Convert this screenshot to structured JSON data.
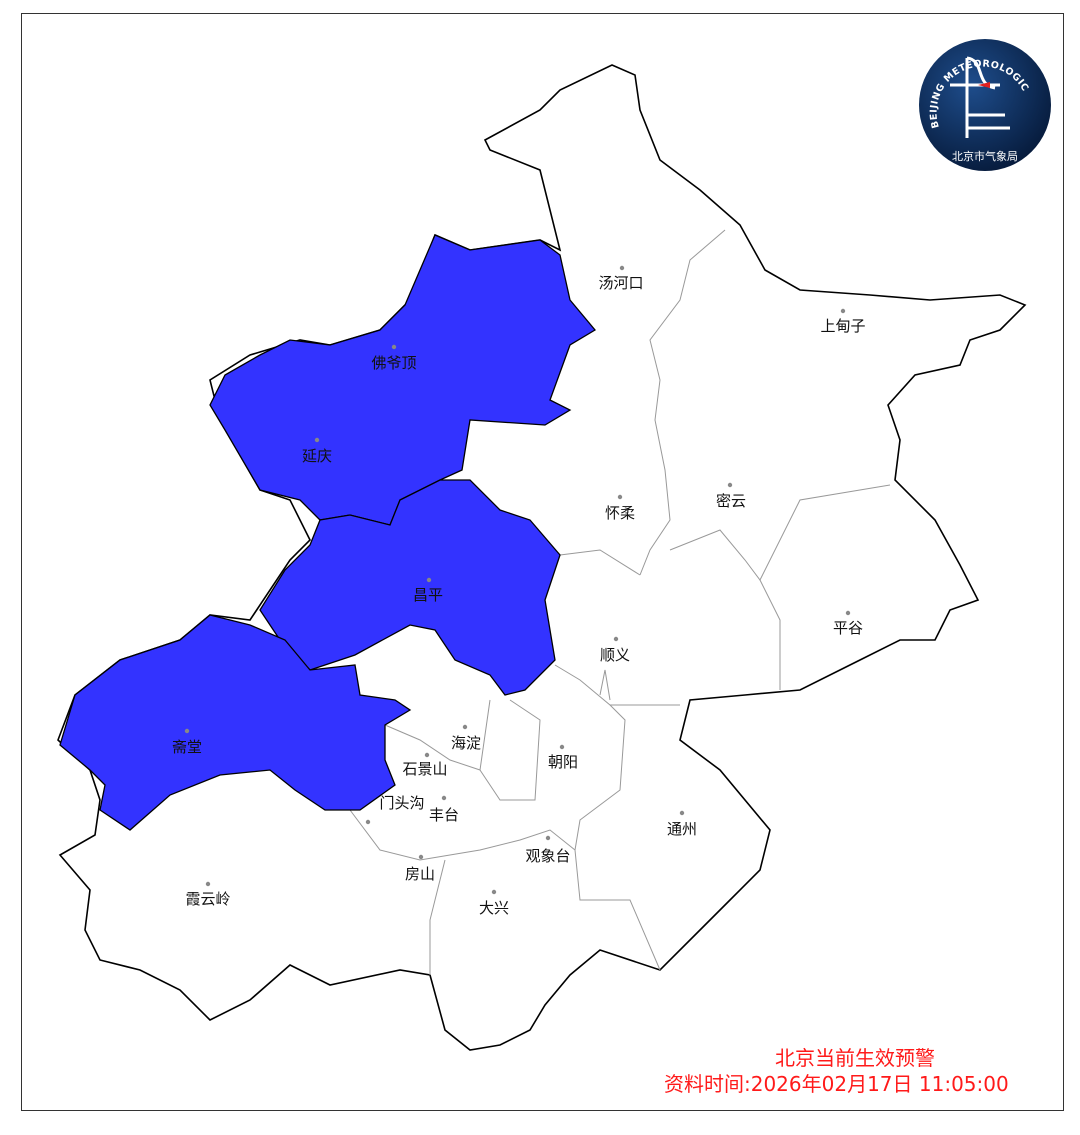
{
  "map": {
    "title": "北京当前生效预警",
    "data_time": "资料时间:2026年02月17日  11:05:00",
    "logo": {
      "text_en": "BEIJING METEOROLOGICAL SERVICE",
      "text_cn": "北京市气象局"
    },
    "colors": {
      "warning_fill": "#3333ff",
      "boundary": "#000000",
      "district_border": "#999999",
      "title_text": "#ff1a1a",
      "logo_bg": "#0b2a5a"
    },
    "warning_regions": [
      "延庆",
      "佛爷顶",
      "昌平",
      "斋堂"
    ],
    "stations": [
      {
        "name": "汤河口",
        "dot": [
          622,
          268
        ],
        "label": [
          621,
          288
        ]
      },
      {
        "name": "上甸子",
        "dot": [
          843,
          311
        ],
        "label": [
          843,
          331
        ]
      },
      {
        "name": "佛爷顶",
        "dot": [
          394,
          347
        ],
        "label": [
          394,
          368
        ]
      },
      {
        "name": "延庆",
        "dot": [
          317,
          440
        ],
        "label": [
          317,
          461
        ]
      },
      {
        "name": "怀柔",
        "dot": [
          620,
          497
        ],
        "label": [
          620,
          518
        ]
      },
      {
        "name": "密云",
        "dot": [
          730,
          485
        ],
        "label": [
          731,
          506
        ]
      },
      {
        "name": "昌平",
        "dot": [
          429,
          580
        ],
        "label": [
          428,
          600
        ]
      },
      {
        "name": "平谷",
        "dot": [
          848,
          613
        ],
        "label": [
          848,
          633
        ]
      },
      {
        "name": "顺义",
        "dot": [
          616,
          639
        ],
        "label": [
          615,
          660
        ]
      },
      {
        "name": "海淀",
        "dot": [
          465,
          727
        ],
        "label": [
          466,
          748
        ]
      },
      {
        "name": "朝阳",
        "dot": [
          562,
          747
        ],
        "label": [
          563,
          767
        ]
      },
      {
        "name": "斋堂",
        "dot": [
          187,
          731
        ],
        "label": [
          187,
          752
        ]
      },
      {
        "name": "石景山",
        "dot": [
          427,
          755
        ],
        "label": [
          425,
          774
        ]
      },
      {
        "name": "门头沟",
        "dot": [
          368,
          822
        ],
        "label": [
          402,
          808
        ]
      },
      {
        "name": "丰台",
        "dot": [
          444,
          798
        ],
        "label": [
          444,
          820
        ]
      },
      {
        "name": "通州",
        "dot": [
          682,
          813
        ],
        "label": [
          682,
          834
        ]
      },
      {
        "name": "观象台",
        "dot": [
          548,
          838
        ],
        "label": [
          548,
          861
        ]
      },
      {
        "name": "房山",
        "dot": [
          421,
          857
        ],
        "label": [
          420,
          879
        ]
      },
      {
        "name": "霞云岭",
        "dot": [
          208,
          884
        ],
        "label": [
          208,
          904
        ]
      },
      {
        "name": "大兴",
        "dot": [
          494,
          892
        ],
        "label": [
          494,
          913
        ]
      }
    ]
  }
}
